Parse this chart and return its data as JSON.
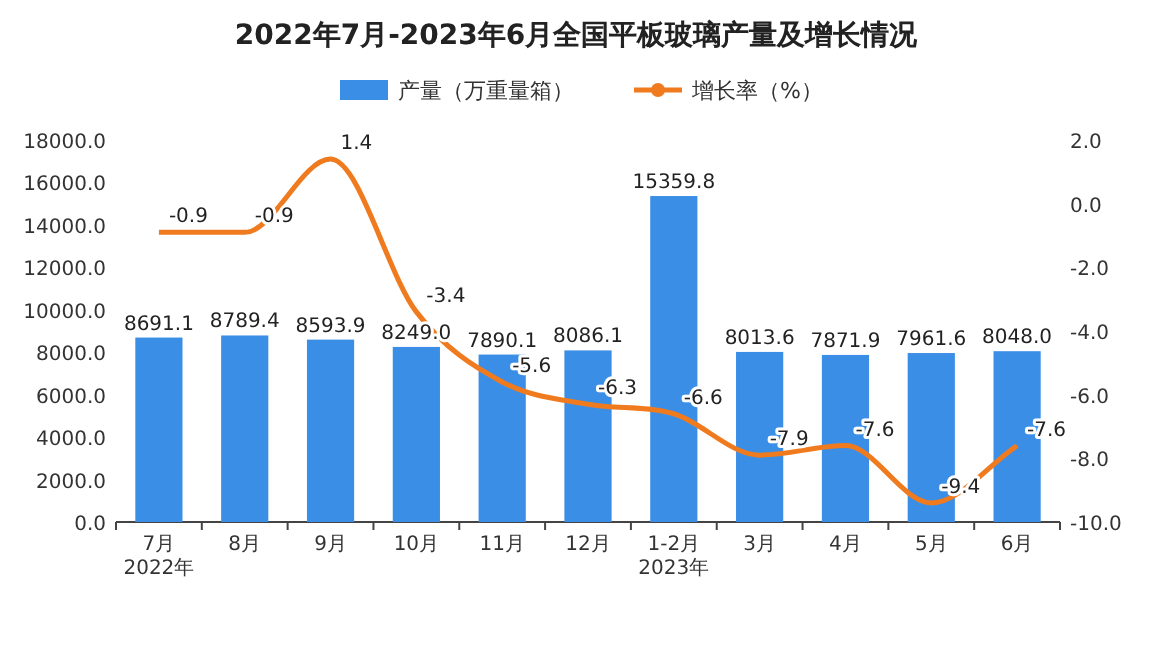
{
  "chart_data": {
    "type": "bar",
    "title": "2022年7月-2023年6月全国平板玻璃产量及增长情况",
    "categories": [
      "7月\n2022年",
      "8月",
      "9月",
      "10月",
      "11月",
      "12月",
      "1-2月\n2023年",
      "3月",
      "4月",
      "5月",
      "6月"
    ],
    "series": [
      {
        "name": "产量（万重量箱）",
        "color": "#3b8ee6",
        "values": [
          8691.1,
          8789.4,
          8593.9,
          8249,
          7890.1,
          8086.1,
          15359.8,
          8013.6,
          7871.9,
          7961.6,
          8048
        ],
        "value_labels": [
          "8691.1",
          "8789.4",
          "8593.9",
          "8249.0",
          "7890.1",
          "8086.1",
          "15359.8",
          "8013.6",
          "7871.9",
          "7961.6",
          "8048.0"
        ]
      },
      {
        "name": "增长率（%）",
        "type": "line",
        "axis": "y2",
        "color": "#f07a1e",
        "values": [
          -0.9,
          -0.9,
          1.4,
          -3.4,
          -5.6,
          -6.3,
          -6.6,
          -7.9,
          -7.6,
          -9.4,
          -7.6
        ]
      }
    ],
    "ylim": [
      0,
      18000
    ],
    "yticks": [
      {
        "value": 0,
        "label": "0.0"
      },
      {
        "value": 2000,
        "label": "2000.0"
      },
      {
        "value": 4000,
        "label": "4000.0"
      },
      {
        "value": 6000,
        "label": "6000.0"
      },
      {
        "value": 8000,
        "label": "8000.0"
      },
      {
        "value": 10000,
        "label": "10000.0"
      },
      {
        "value": 12000,
        "label": "12000.0"
      },
      {
        "value": 14000,
        "label": "14000.0"
      },
      {
        "value": 16000,
        "label": "16000.0"
      },
      {
        "value": 18000,
        "label": "18000.0"
      }
    ],
    "y2lim": [
      -10,
      2
    ],
    "y2ticks": [
      {
        "value": -10,
        "label": "-10.0"
      },
      {
        "value": -8,
        "label": "-8.0"
      },
      {
        "value": -6,
        "label": "-6.0"
      },
      {
        "value": -4,
        "label": "-4.0"
      },
      {
        "value": -2,
        "label": "-2.0"
      },
      {
        "value": 0,
        "label": "0.0"
      },
      {
        "value": 2,
        "label": "2.0"
      }
    ],
    "data_labels": true,
    "legend": "top"
  }
}
